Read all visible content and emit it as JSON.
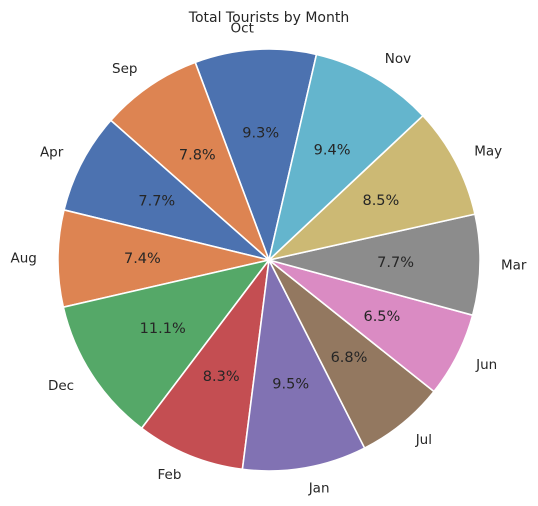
{
  "chart_data": {
    "type": "pie",
    "title": "Total Tourists by Month",
    "slices": [
      {
        "label": "Oct",
        "percent": 9.3,
        "color": "#4c72b0"
      },
      {
        "label": "Sep",
        "percent": 7.8,
        "color": "#dd8452"
      },
      {
        "label": "Apr",
        "percent": 7.7,
        "color": "#4c72b0"
      },
      {
        "label": "Aug",
        "percent": 7.4,
        "color": "#dd8452"
      },
      {
        "label": "Dec",
        "percent": 11.1,
        "color": "#55a868"
      },
      {
        "label": "Feb",
        "percent": 8.3,
        "color": "#c44e52"
      },
      {
        "label": "Jan",
        "percent": 9.5,
        "color": "#8172b3"
      },
      {
        "label": "Jul",
        "percent": 6.8,
        "color": "#937860"
      },
      {
        "label": "Jun",
        "percent": 6.5,
        "color": "#da8bc3"
      },
      {
        "label": "Mar",
        "percent": 7.7,
        "color": "#8c8c8c"
      },
      {
        "label": "May",
        "percent": 8.5,
        "color": "#ccb974"
      },
      {
        "label": "Nov",
        "percent": 9.4,
        "color": "#64b5cd"
      }
    ],
    "direction": "counterclockwise",
    "legend": "none"
  }
}
